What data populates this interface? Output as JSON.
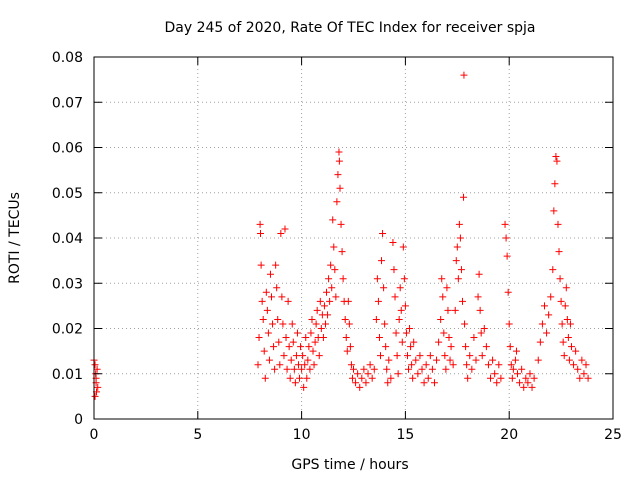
{
  "chart_data": {
    "type": "scatter",
    "title": "Day 245 of 2020, Rate Of TEC Index for receiver spja",
    "xlabel": "GPS time / hours",
    "ylabel": "ROTI / TECUs",
    "xlim": [
      0,
      25
    ],
    "ylim": [
      0,
      0.08
    ],
    "xticks": [
      0,
      5,
      10,
      15,
      20,
      25
    ],
    "xtick_labels": [
      "0",
      "5",
      "10",
      "15",
      "20",
      "25"
    ],
    "yticks": [
      0,
      0.01,
      0.02,
      0.03,
      0.04,
      0.05,
      0.06,
      0.07,
      0.08
    ],
    "ytick_labels": [
      "0",
      "0.01",
      "0.02",
      "0.03",
      "0.04",
      "0.05",
      "0.06",
      "0.07",
      "0.08"
    ],
    "grid": true,
    "marker": "+",
    "color": "#ff0000",
    "series": [
      {
        "points": [
          [
            0.0,
            0.013
          ],
          [
            0.05,
            0.012
          ],
          [
            0.08,
            0.01
          ],
          [
            0.1,
            0.008
          ],
          [
            0.12,
            0.006
          ],
          [
            0.15,
            0.011
          ],
          [
            0.18,
            0.007
          ],
          [
            0.05,
            0.005
          ],
          [
            0.1,
            0.009
          ],
          [
            7.9,
            0.012
          ],
          [
            7.95,
            0.018
          ],
          [
            8.0,
            0.043
          ],
          [
            8.02,
            0.041
          ],
          [
            8.05,
            0.034
          ],
          [
            8.1,
            0.026
          ],
          [
            8.15,
            0.022
          ],
          [
            8.2,
            0.015
          ],
          [
            8.25,
            0.009
          ],
          [
            8.3,
            0.028
          ],
          [
            8.35,
            0.024
          ],
          [
            8.4,
            0.019
          ],
          [
            8.45,
            0.013
          ],
          [
            8.5,
            0.032
          ],
          [
            8.55,
            0.027
          ],
          [
            8.6,
            0.021
          ],
          [
            8.65,
            0.016
          ],
          [
            8.7,
            0.011
          ],
          [
            8.75,
            0.034
          ],
          [
            8.8,
            0.029
          ],
          [
            8.85,
            0.022
          ],
          [
            8.9,
            0.017
          ],
          [
            8.95,
            0.012
          ],
          [
            9.0,
            0.041
          ],
          [
            9.05,
            0.027
          ],
          [
            9.1,
            0.021
          ],
          [
            9.15,
            0.014
          ],
          [
            9.2,
            0.042
          ],
          [
            9.25,
            0.018
          ],
          [
            9.3,
            0.011
          ],
          [
            9.35,
            0.026
          ],
          [
            9.4,
            0.016
          ],
          [
            9.45,
            0.009
          ],
          [
            9.5,
            0.013
          ],
          [
            9.55,
            0.021
          ],
          [
            9.6,
            0.017
          ],
          [
            9.65,
            0.011
          ],
          [
            9.7,
            0.008
          ],
          [
            9.75,
            0.014
          ],
          [
            9.8,
            0.019
          ],
          [
            9.85,
            0.012
          ],
          [
            9.9,
            0.009
          ],
          [
            9.95,
            0.016
          ],
          [
            10.0,
            0.011
          ],
          [
            10.05,
            0.014
          ],
          [
            10.1,
            0.007
          ],
          [
            10.15,
            0.012
          ],
          [
            10.2,
            0.018
          ],
          [
            10.25,
            0.009
          ],
          [
            10.3,
            0.013
          ],
          [
            10.35,
            0.016
          ],
          [
            10.4,
            0.011
          ],
          [
            10.45,
            0.019
          ],
          [
            10.5,
            0.022
          ],
          [
            10.55,
            0.015
          ],
          [
            10.6,
            0.012
          ],
          [
            10.65,
            0.017
          ],
          [
            10.7,
            0.021
          ],
          [
            10.75,
            0.024
          ],
          [
            10.8,
            0.018
          ],
          [
            10.85,
            0.014
          ],
          [
            10.9,
            0.026
          ],
          [
            10.95,
            0.02
          ],
          [
            11.0,
            0.023
          ],
          [
            11.05,
            0.018
          ],
          [
            11.1,
            0.025
          ],
          [
            11.15,
            0.021
          ],
          [
            11.2,
            0.028
          ],
          [
            11.25,
            0.023
          ],
          [
            11.3,
            0.031
          ],
          [
            11.35,
            0.026
          ],
          [
            11.4,
            0.034
          ],
          [
            11.45,
            0.029
          ],
          [
            11.5,
            0.044
          ],
          [
            11.55,
            0.038
          ],
          [
            11.6,
            0.033
          ],
          [
            11.65,
            0.027
          ],
          [
            11.7,
            0.048
          ],
          [
            11.75,
            0.054
          ],
          [
            11.8,
            0.059
          ],
          [
            11.82,
            0.057
          ],
          [
            11.85,
            0.051
          ],
          [
            11.9,
            0.043
          ],
          [
            11.95,
            0.037
          ],
          [
            12.0,
            0.031
          ],
          [
            12.05,
            0.026
          ],
          [
            12.1,
            0.022
          ],
          [
            12.15,
            0.018
          ],
          [
            12.2,
            0.015
          ],
          [
            12.25,
            0.026
          ],
          [
            12.3,
            0.021
          ],
          [
            12.35,
            0.016
          ],
          [
            12.4,
            0.012
          ],
          [
            12.45,
            0.009
          ],
          [
            12.5,
            0.011
          ],
          [
            12.6,
            0.008
          ],
          [
            12.7,
            0.01
          ],
          [
            12.8,
            0.007
          ],
          [
            12.9,
            0.009
          ],
          [
            13.0,
            0.011
          ],
          [
            13.1,
            0.008
          ],
          [
            13.2,
            0.01
          ],
          [
            13.3,
            0.012
          ],
          [
            13.4,
            0.009
          ],
          [
            13.5,
            0.011
          ],
          [
            13.6,
            0.022
          ],
          [
            13.65,
            0.031
          ],
          [
            13.7,
            0.026
          ],
          [
            13.75,
            0.018
          ],
          [
            13.8,
            0.014
          ],
          [
            13.85,
            0.035
          ],
          [
            13.9,
            0.041
          ],
          [
            13.95,
            0.029
          ],
          [
            14.0,
            0.021
          ],
          [
            14.05,
            0.016
          ],
          [
            14.1,
            0.011
          ],
          [
            14.15,
            0.008
          ],
          [
            14.2,
            0.013
          ],
          [
            14.3,
            0.009
          ],
          [
            14.4,
            0.039
          ],
          [
            14.45,
            0.033
          ],
          [
            14.5,
            0.027
          ],
          [
            14.55,
            0.019
          ],
          [
            14.6,
            0.014
          ],
          [
            14.65,
            0.01
          ],
          [
            14.7,
            0.022
          ],
          [
            14.75,
            0.029
          ],
          [
            14.8,
            0.024
          ],
          [
            14.85,
            0.017
          ],
          [
            14.9,
            0.038
          ],
          [
            14.95,
            0.031
          ],
          [
            15.0,
            0.025
          ],
          [
            15.05,
            0.019
          ],
          [
            15.1,
            0.014
          ],
          [
            15.15,
            0.011
          ],
          [
            15.2,
            0.02
          ],
          [
            15.25,
            0.016
          ],
          [
            15.3,
            0.012
          ],
          [
            15.35,
            0.009
          ],
          [
            15.4,
            0.017
          ],
          [
            15.5,
            0.013
          ],
          [
            15.6,
            0.01
          ],
          [
            15.7,
            0.014
          ],
          [
            15.8,
            0.011
          ],
          [
            15.9,
            0.008
          ],
          [
            16.0,
            0.012
          ],
          [
            16.1,
            0.009
          ],
          [
            16.2,
            0.014
          ],
          [
            16.3,
            0.011
          ],
          [
            16.4,
            0.008
          ],
          [
            16.5,
            0.013
          ],
          [
            16.6,
            0.017
          ],
          [
            16.7,
            0.022
          ],
          [
            16.75,
            0.031
          ],
          [
            16.8,
            0.027
          ],
          [
            16.85,
            0.019
          ],
          [
            16.9,
            0.014
          ],
          [
            16.95,
            0.011
          ],
          [
            17.0,
            0.029
          ],
          [
            17.05,
            0.024
          ],
          [
            17.1,
            0.018
          ],
          [
            17.15,
            0.013
          ],
          [
            17.2,
            0.016
          ],
          [
            17.3,
            0.012
          ],
          [
            17.4,
            0.024
          ],
          [
            17.45,
            0.035
          ],
          [
            17.5,
            0.038
          ],
          [
            17.55,
            0.031
          ],
          [
            17.6,
            0.043
          ],
          [
            17.65,
            0.04
          ],
          [
            17.7,
            0.033
          ],
          [
            17.75,
            0.026
          ],
          [
            17.8,
            0.049
          ],
          [
            17.82,
            0.076
          ],
          [
            17.85,
            0.021
          ],
          [
            17.9,
            0.016
          ],
          [
            17.95,
            0.012
          ],
          [
            18.0,
            0.009
          ],
          [
            18.1,
            0.014
          ],
          [
            18.2,
            0.011
          ],
          [
            18.3,
            0.018
          ],
          [
            18.4,
            0.013
          ],
          [
            18.5,
            0.027
          ],
          [
            18.55,
            0.032
          ],
          [
            18.6,
            0.024
          ],
          [
            18.65,
            0.019
          ],
          [
            18.7,
            0.014
          ],
          [
            18.8,
            0.02
          ],
          [
            18.9,
            0.016
          ],
          [
            19.0,
            0.012
          ],
          [
            19.1,
            0.009
          ],
          [
            19.2,
            0.013
          ],
          [
            19.3,
            0.01
          ],
          [
            19.4,
            0.008
          ],
          [
            19.5,
            0.012
          ],
          [
            19.6,
            0.009
          ],
          [
            19.8,
            0.043
          ],
          [
            19.85,
            0.04
          ],
          [
            19.9,
            0.036
          ],
          [
            19.95,
            0.028
          ],
          [
            20.0,
            0.021
          ],
          [
            20.05,
            0.016
          ],
          [
            20.1,
            0.012
          ],
          [
            20.15,
            0.009
          ],
          [
            20.2,
            0.011
          ],
          [
            20.3,
            0.013
          ],
          [
            20.35,
            0.015
          ],
          [
            20.4,
            0.01
          ],
          [
            20.5,
            0.008
          ],
          [
            20.6,
            0.011
          ],
          [
            20.7,
            0.007
          ],
          [
            20.8,
            0.009
          ],
          [
            20.9,
            0.008
          ],
          [
            21.0,
            0.01
          ],
          [
            21.1,
            0.007
          ],
          [
            21.2,
            0.009
          ],
          [
            21.4,
            0.013
          ],
          [
            21.5,
            0.017
          ],
          [
            21.6,
            0.021
          ],
          [
            21.7,
            0.025
          ],
          [
            21.8,
            0.019
          ],
          [
            21.9,
            0.023
          ],
          [
            22.0,
            0.027
          ],
          [
            22.1,
            0.033
          ],
          [
            22.15,
            0.046
          ],
          [
            22.2,
            0.052
          ],
          [
            22.25,
            0.058
          ],
          [
            22.3,
            0.057
          ],
          [
            22.35,
            0.043
          ],
          [
            22.4,
            0.037
          ],
          [
            22.45,
            0.031
          ],
          [
            22.5,
            0.026
          ],
          [
            22.55,
            0.021
          ],
          [
            22.6,
            0.017
          ],
          [
            22.65,
            0.014
          ],
          [
            22.7,
            0.025
          ],
          [
            22.75,
            0.029
          ],
          [
            22.8,
            0.022
          ],
          [
            22.85,
            0.018
          ],
          [
            22.9,
            0.013
          ],
          [
            22.95,
            0.021
          ],
          [
            23.0,
            0.016
          ],
          [
            23.1,
            0.012
          ],
          [
            23.2,
            0.015
          ],
          [
            23.3,
            0.011
          ],
          [
            23.4,
            0.009
          ],
          [
            23.5,
            0.013
          ],
          [
            23.6,
            0.01
          ],
          [
            23.7,
            0.012
          ],
          [
            23.8,
            0.009
          ]
        ]
      }
    ]
  }
}
